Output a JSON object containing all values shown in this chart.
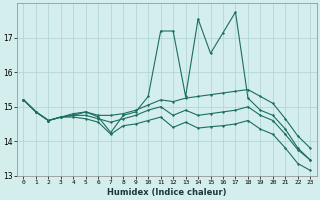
{
  "xlabel": "Humidex (Indice chaleur)",
  "background_color": "#d4eeed",
  "grid_color": "#aed4d0",
  "line_color": "#1a6e60",
  "x_values": [
    0,
    1,
    2,
    3,
    4,
    5,
    6,
    7,
    8,
    9,
    10,
    11,
    12,
    13,
    14,
    15,
    16,
    17,
    18,
    19,
    20,
    21,
    22,
    23
  ],
  "spike_y": [
    15.2,
    14.85,
    14.6,
    14.7,
    14.8,
    14.85,
    14.7,
    14.25,
    14.75,
    14.85,
    15.3,
    17.2,
    17.2,
    15.3,
    17.55,
    16.55,
    17.15,
    17.75,
    15.25,
    14.9,
    14.75,
    14.35,
    13.8,
    13.45
  ],
  "flat_y": [
    15.2,
    14.85,
    14.6,
    14.7,
    14.75,
    14.85,
    14.75,
    14.75,
    14.8,
    14.9,
    15.05,
    15.2,
    15.15,
    15.25,
    15.3,
    15.35,
    15.4,
    15.45,
    15.5,
    15.3,
    15.1,
    14.65,
    14.15,
    13.8
  ],
  "mid_y": [
    15.2,
    14.85,
    14.6,
    14.7,
    14.75,
    14.75,
    14.65,
    14.55,
    14.65,
    14.75,
    14.9,
    15.0,
    14.75,
    14.9,
    14.75,
    14.8,
    14.85,
    14.9,
    15.0,
    14.75,
    14.6,
    14.2,
    13.75,
    13.45
  ],
  "low_y": [
    15.2,
    14.85,
    14.6,
    14.7,
    14.7,
    14.65,
    14.55,
    14.2,
    14.45,
    14.5,
    14.6,
    14.7,
    14.4,
    14.55,
    14.38,
    14.42,
    14.45,
    14.5,
    14.6,
    14.35,
    14.2,
    13.8,
    13.35,
    13.15
  ],
  "ylim": [
    13.0,
    18.0
  ],
  "yticks": [
    13,
    14,
    15,
    16,
    17
  ],
  "xlim": [
    -0.5,
    23.5
  ],
  "figsize": [
    3.2,
    2.0
  ],
  "dpi": 100
}
